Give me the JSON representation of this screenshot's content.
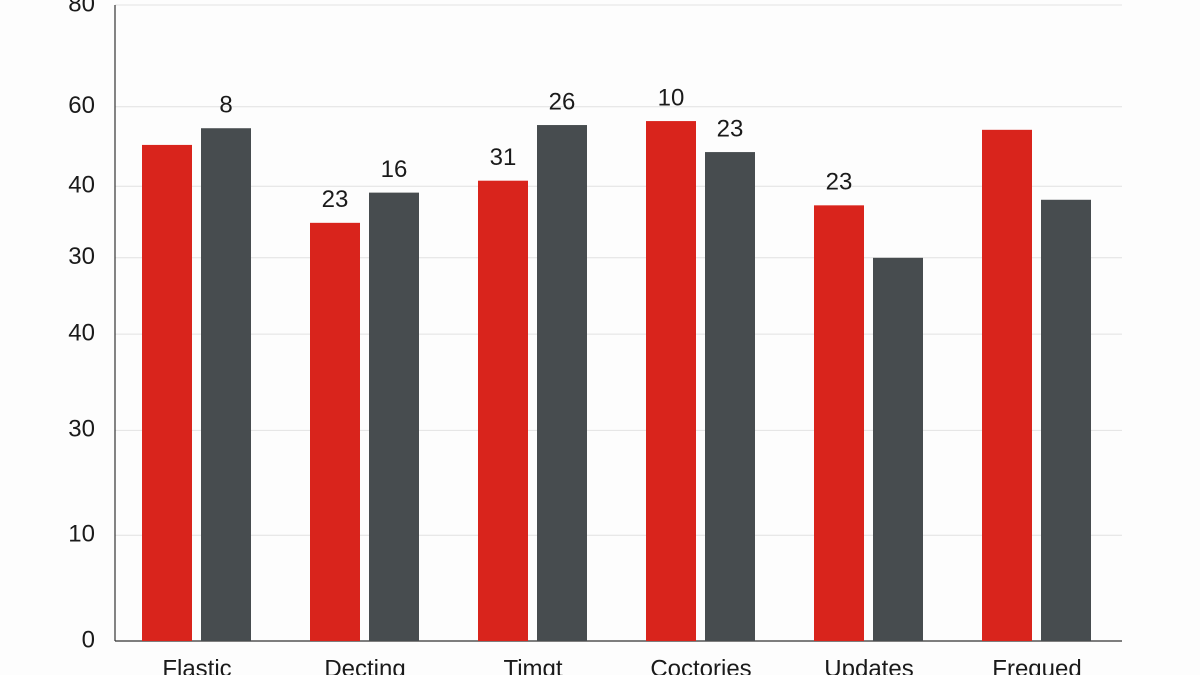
{
  "chart_data": {
    "type": "bar",
    "categories": [
      "Flastic",
      "Decting",
      "Timgt",
      "Coctories",
      "Updates",
      "Frequed"
    ],
    "series": [
      {
        "color": "#d9241c",
        "values": [
          62.4,
          52.6,
          57.9,
          65.4,
          54.8,
          64.3
        ],
        "point_labels": [
          null,
          "23",
          "31",
          "10",
          "23",
          null
        ]
      },
      {
        "color": "#474c4f",
        "values": [
          64.5,
          56.4,
          64.9,
          61.5,
          48.2,
          55.5
        ],
        "point_labels": [
          "8",
          "16",
          "26",
          "23",
          null,
          null
        ]
      }
    ],
    "ylim": [
      0,
      80
    ],
    "yticks": [
      0,
      {
        "value": 13.3,
        "label": "10"
      },
      {
        "value": 26.5,
        "label": "30"
      },
      {
        "value": 38.6,
        "label": "40"
      },
      {
        "value": 48.2,
        "label": "30"
      },
      {
        "value": 57.2,
        "label": "40"
      },
      {
        "value": 67.2,
        "label": "60"
      },
      80
    ],
    "grid": true
  }
}
